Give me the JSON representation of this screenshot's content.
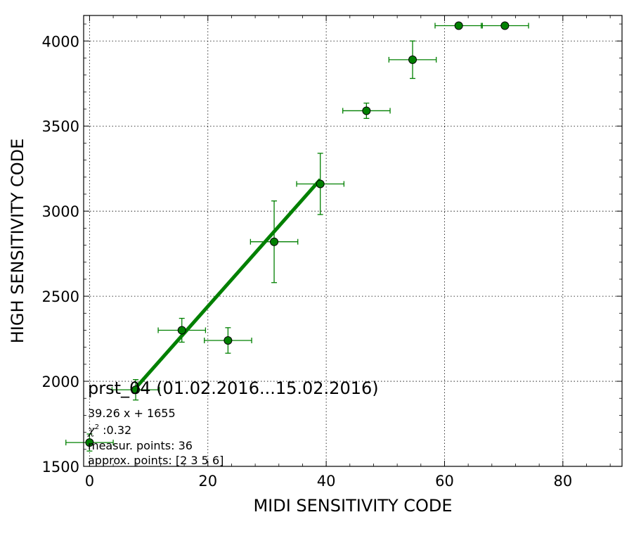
{
  "chart_data": {
    "type": "scatter",
    "xlabel": "MIDI SENSITIVITY CODE",
    "ylabel": "HIGH SENSITIVITY CODE",
    "xlim": [
      -1,
      90
    ],
    "ylim": [
      1500,
      4150
    ],
    "x_ticks": [
      0,
      20,
      40,
      60,
      80
    ],
    "y_ticks": [
      1500,
      2000,
      2500,
      3000,
      3500,
      4000
    ],
    "grid": true,
    "colors": {
      "points": "#008000",
      "errorbars": "#008000",
      "fit": "#008000",
      "marker_edge": "#000000"
    },
    "points": [
      {
        "x": 0,
        "y": 1640,
        "xerr": 4,
        "yerr": 50
      },
      {
        "x": 7.8,
        "y": 1950,
        "xerr": 4,
        "yerr": 60
      },
      {
        "x": 15.6,
        "y": 2300,
        "xerr": 4,
        "yerr": 70
      },
      {
        "x": 23.4,
        "y": 2240,
        "xerr": 4,
        "yerr": 75
      },
      {
        "x": 31.2,
        "y": 2820,
        "xerr": 4,
        "yerr": 240
      },
      {
        "x": 39,
        "y": 3160,
        "xerr": 4,
        "yerr": 180
      },
      {
        "x": 46.8,
        "y": 3590,
        "xerr": 4,
        "yerr": 45
      },
      {
        "x": 54.6,
        "y": 3890,
        "xerr": 4,
        "yerr": 110
      },
      {
        "x": 62.4,
        "y": 4090,
        "xerr": 4,
        "yerr": 0
      },
      {
        "x": 70.2,
        "y": 4090,
        "xerr": 4,
        "yerr": 0
      }
    ],
    "fit": {
      "slope": 39.26,
      "intercept": 1655,
      "x_range": [
        7.8,
        39
      ]
    },
    "annotation": {
      "title": "prst_04 (01.02.2016...15.02.2016)",
      "equation": "39.26 x + 1655",
      "chi_symbol": "χ",
      "chi_sup": "2",
      "chi_value": " :0.32",
      "measured": "measur. points: 36",
      "approx": "approx. points: [2 3 5 6]"
    }
  }
}
